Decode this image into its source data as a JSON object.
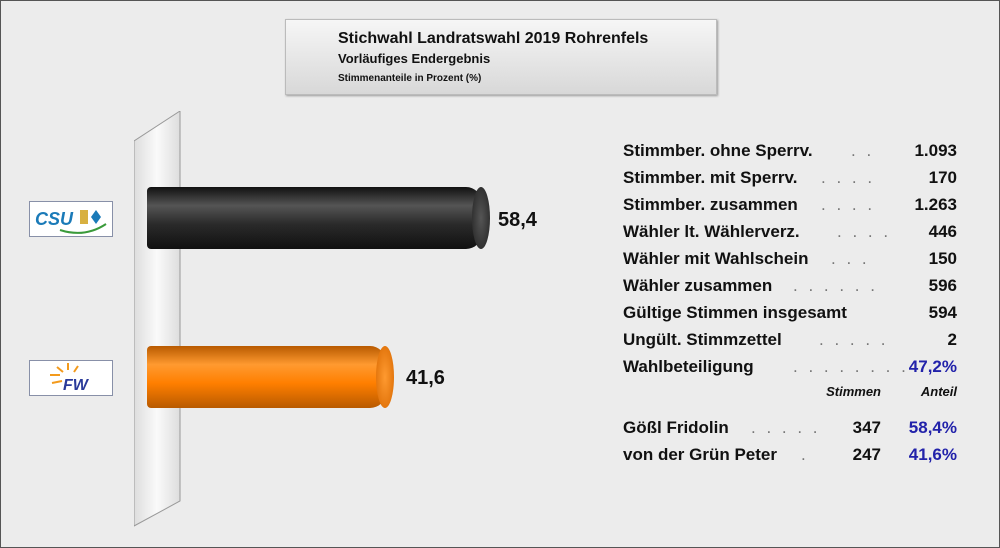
{
  "title": "Stichwahl Landratswahl 2019 Rohrenfels",
  "subtitle": "Vorläufiges Endergebnis",
  "subtitle2": "Stimmenanteile in Prozent (%)",
  "chart_data": {
    "type": "bar",
    "orientation": "horizontal",
    "categories": [
      "CSU",
      "FW"
    ],
    "values": [
      58.4,
      41.6
    ],
    "value_labels": [
      "58,4",
      "41,6"
    ],
    "colors": [
      "#2a2a2a",
      "#ff7f00"
    ],
    "xlim": [
      0,
      100
    ]
  },
  "stats": [
    {
      "label": "Stimmber. ohne Sperrv.",
      "dots": "..",
      "value": "1.093"
    },
    {
      "label": "Stimmber. mit Sperrv.",
      "dots": "....",
      "value": "170"
    },
    {
      "label": "Stimmber. zusammen",
      "dots": "....",
      "value": "1.263"
    },
    {
      "label": "Wähler lt. Wählerverz.",
      "dots": "....",
      "value": "446"
    },
    {
      "label": "Wähler mit Wahlschein",
      "dots": "...",
      "value": "150"
    },
    {
      "label": "Wähler zusammen",
      "dots": "......",
      "value": "596"
    },
    {
      "label": "Gültige Stimmen insgesamt",
      "dots": "",
      "value": "594"
    },
    {
      "label": "Ungült. Stimmzettel",
      "dots": ".....",
      "value": "2"
    },
    {
      "label": "Wahlbeteiligung",
      "dots": "........",
      "value": "47,2%"
    }
  ],
  "candidates_header": {
    "votes": "Stimmen",
    "share": "Anteil"
  },
  "candidates": [
    {
      "name": "Gößl Fridolin",
      "dots": ".....",
      "votes": "347",
      "share": "58,4%"
    },
    {
      "name": "von der Grün Peter",
      "dots": ".",
      "votes": "247",
      "share": "41,6%"
    }
  ],
  "logos": {
    "csu": "CSU",
    "fw": "FW"
  }
}
